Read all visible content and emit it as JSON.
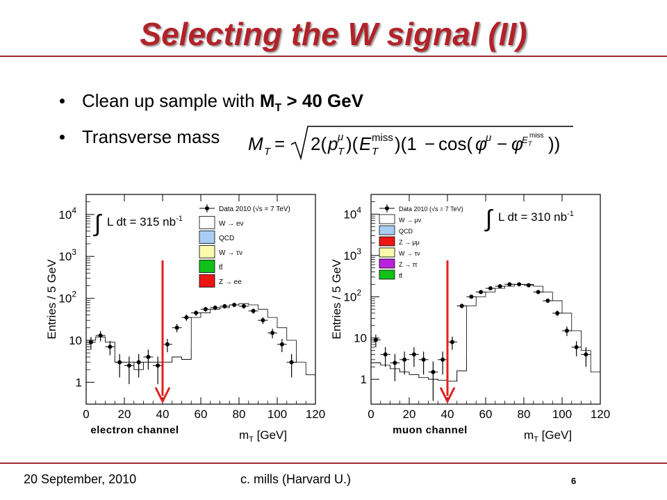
{
  "slide": {
    "title": "Selecting the W signal (II)",
    "bullets": [
      {
        "prefix": "Clean up sample with ",
        "bold": "M",
        "sub": "T",
        "suffix": " > 40 GeV"
      },
      {
        "text": "Transverse mass"
      }
    ],
    "footer_date": "20 September, 2010",
    "footer_author": "c. mills (Harvard U.)",
    "page_number": "6",
    "colors": {
      "title": "#b1232a",
      "rule": "#9b2a2f",
      "cut_arrow": "#e0201e"
    }
  },
  "chart_data": [
    {
      "type": "bar",
      "channel_label": "electron channel",
      "xlabel": "m_T [GeV]",
      "ylabel": "Entries / 5 GeV",
      "log_y": true,
      "xlim": [
        0,
        120
      ],
      "ylim": [
        0.3,
        30000
      ],
      "x_ticks": [
        "0",
        "20",
        "40",
        "60",
        "80",
        "100",
        "120"
      ],
      "y_ticks": [
        "1",
        "10",
        "10^2",
        "10^3",
        "10^4"
      ],
      "luminosity_label": "L dt = 315 nb^-1",
      "cut_value": 40,
      "bin_width": 5,
      "legend_position": "top-right",
      "legend": [
        {
          "label": "Data 2010 (√s = 7 TeV)",
          "kind": "marker",
          "color": "#000000"
        },
        {
          "label": "W → eν",
          "kind": "box",
          "color": "#ffffff"
        },
        {
          "label": "QCD",
          "kind": "box",
          "color": "#a9cdf2"
        },
        {
          "label": "W → τν",
          "kind": "box",
          "color": "#fafaac"
        },
        {
          "label": "tt̄",
          "kind": "box",
          "color": "#11c11a"
        },
        {
          "label": "Z → ee",
          "kind": "box",
          "color": "#ee1515"
        }
      ],
      "stacks": [
        {
          "name": "Z → ee",
          "color": "#ee1515",
          "values": [
            0,
            0,
            0,
            0,
            0,
            0,
            0,
            0,
            0,
            0,
            0,
            0,
            0.32,
            0.38,
            0.42,
            0.42,
            0.38,
            0.33,
            0,
            0,
            0,
            0,
            0,
            0
          ]
        },
        {
          "name": "tt̄",
          "color": "#11c11a",
          "values": [
            0,
            0,
            0,
            0,
            0,
            0,
            0,
            0,
            0,
            0.35,
            0.4,
            0.5,
            0.62,
            0.72,
            0.78,
            0.78,
            0.7,
            0.6,
            0.5,
            0.42,
            0.36,
            0.32,
            0,
            0
          ]
        },
        {
          "name": "W → τν",
          "color": "#fafaac",
          "values": [
            0.7,
            0.7,
            0.7,
            0.72,
            0.72,
            0.72,
            0.75,
            0.75,
            0.8,
            0.8,
            0.82,
            2.8,
            3.8,
            4.2,
            4.0,
            3.2,
            2.4,
            1.6,
            1.0,
            0.6,
            0.4,
            0.36,
            0.34,
            0.32
          ]
        },
        {
          "name": "QCD",
          "color": "#a9cdf2",
          "values": [
            10,
            12,
            9,
            3,
            3,
            2,
            3,
            3,
            3,
            4,
            3.5,
            6,
            6,
            6.5,
            6.5,
            4.5,
            3.5,
            2.5,
            1.5,
            1,
            4,
            4,
            0.55,
            1.5
          ]
        },
        {
          "name": "W → eν",
          "color": "#ffffff",
          "values": [
            10,
            12,
            9,
            3,
            3,
            2,
            3,
            3,
            3,
            4,
            3.5,
            35,
            45,
            55,
            60,
            70,
            75,
            70,
            55,
            35,
            20,
            10,
            3,
            1.5
          ]
        }
      ],
      "data_points": [
        {
          "x": 2.5,
          "y": 9,
          "err": 3
        },
        {
          "x": 7.5,
          "y": 13,
          "err": 3.6
        },
        {
          "x": 12.5,
          "y": 7,
          "err": 2.6
        },
        {
          "x": 17.5,
          "y": 3,
          "err": 1.7
        },
        {
          "x": 22.5,
          "y": 2.5,
          "err": 1.6
        },
        {
          "x": 27.5,
          "y": 3,
          "err": 1.7
        },
        {
          "x": 32.5,
          "y": 4,
          "err": 2
        },
        {
          "x": 37.5,
          "y": 2.5,
          "err": 1.6
        },
        {
          "x": 42.5,
          "y": 8,
          "err": 2.8
        },
        {
          "x": 47.5,
          "y": 20,
          "err": 4.5
        },
        {
          "x": 52.5,
          "y": 35,
          "err": 6
        },
        {
          "x": 57.5,
          "y": 45,
          "err": 6.7
        },
        {
          "x": 62.5,
          "y": 55,
          "err": 7.4
        },
        {
          "x": 67.5,
          "y": 60,
          "err": 7.7
        },
        {
          "x": 72.5,
          "y": 65,
          "err": 8
        },
        {
          "x": 77.5,
          "y": 70,
          "err": 8.4
        },
        {
          "x": 82.5,
          "y": 65,
          "err": 8
        },
        {
          "x": 87.5,
          "y": 50,
          "err": 7
        },
        {
          "x": 92.5,
          "y": 30,
          "err": 5.5
        },
        {
          "x": 97.5,
          "y": 15,
          "err": 3.9
        },
        {
          "x": 102.5,
          "y": 8,
          "err": 2.8
        },
        {
          "x": 107.5,
          "y": 3,
          "err": 1.7
        }
      ]
    },
    {
      "type": "bar",
      "channel_label": "muon channel",
      "xlabel": "m_T [GeV]",
      "ylabel": "Entries / 5 GeV",
      "log_y": true,
      "xlim": [
        0,
        120
      ],
      "ylim": [
        0.25,
        30000
      ],
      "x_ticks": [
        "0",
        "20",
        "40",
        "60",
        "80",
        "100",
        "120"
      ],
      "y_ticks": [
        "1",
        "10",
        "10^2",
        "10^3",
        "10^4"
      ],
      "luminosity_label": "L dt = 310 nb^-1",
      "cut_value": 40,
      "bin_width": 5,
      "legend_position": "top-left",
      "legend": [
        {
          "label": "Data 2010 (√s = 7 TeV)",
          "kind": "marker",
          "color": "#000000"
        },
        {
          "label": "W → μν",
          "kind": "box",
          "color": "#ffffff"
        },
        {
          "label": "QCD",
          "kind": "box",
          "color": "#a9cdf2"
        },
        {
          "label": "Z → μμ",
          "kind": "box",
          "color": "#ee1515"
        },
        {
          "label": "W → τν",
          "kind": "box",
          "color": "#fafaac"
        },
        {
          "label": "Z → ττ",
          "kind": "box",
          "color": "#bb22dd"
        },
        {
          "label": "tt̄",
          "kind": "box",
          "color": "#11c11a"
        }
      ],
      "stacks": [
        {
          "name": "tt̄",
          "color": "#11c11a",
          "values": [
            0,
            0,
            0,
            0,
            0,
            0,
            0,
            0,
            0,
            0.32,
            0.36,
            0.4,
            0.45,
            0.5,
            0.55,
            0.55,
            0.5,
            0.45,
            0.4,
            0.35,
            0.3,
            0,
            0,
            0
          ]
        },
        {
          "name": "Z → ττ",
          "color": "#bb22dd",
          "values": [
            0.45,
            0.4,
            0.38,
            0.36,
            0.35,
            0.35,
            0.34,
            0.33,
            0.33,
            0.45,
            0.55,
            0.65,
            0.7,
            0.7,
            0.65,
            0.6,
            0.55,
            0.5,
            0.45,
            0.4,
            0.36,
            0.32,
            0.3,
            0.28
          ]
        },
        {
          "name": "W → τν",
          "color": "#fafaac",
          "values": [
            0.6,
            0.55,
            0.5,
            0.48,
            0.46,
            0.45,
            0.44,
            0.43,
            0.43,
            1.2,
            2.0,
            2.8,
            3.4,
            3.6,
            3.5,
            3.0,
            2.4,
            1.8,
            1.2,
            0.8,
            0.55,
            0.45,
            0.4,
            0.35
          ]
        },
        {
          "name": "Z → μμ",
          "color": "#ee1515",
          "values": [
            0.65,
            0.6,
            0.55,
            0.52,
            0.5,
            0.5,
            0.5,
            0.48,
            0.48,
            1.5,
            3.0,
            4.5,
            6.0,
            7.0,
            7.0,
            6.0,
            5.0,
            4.0,
            3.0,
            2.0,
            1.2,
            0.8,
            0.55,
            0.45
          ]
        },
        {
          "name": "QCD",
          "color": "#a9cdf2",
          "values": [
            2.5,
            2.2,
            1.8,
            1.5,
            1.3,
            1.1,
            1.0,
            0.95,
            0.9,
            1.6,
            3.2,
            4.8,
            6.3,
            7.3,
            7.3,
            6.2,
            5.2,
            4.1,
            3.1,
            2.1,
            1.3,
            0.85,
            0.6,
            0.5
          ]
        },
        {
          "name": "W → μν",
          "color": "#ffffff",
          "values": [
            2.5,
            2.2,
            1.8,
            1.5,
            1.3,
            1.1,
            1.0,
            0.95,
            0.9,
            1.6,
            60,
            100,
            130,
            160,
            180,
            200,
            200,
            180,
            130,
            80,
            40,
            15,
            5,
            1.5
          ]
        }
      ],
      "data_points": [
        {
          "x": 2.5,
          "y": 9,
          "err": 3
        },
        {
          "x": 7.5,
          "y": 4,
          "err": 2
        },
        {
          "x": 12.5,
          "y": 2.5,
          "err": 1.6
        },
        {
          "x": 17.5,
          "y": 3,
          "err": 1.7
        },
        {
          "x": 22.5,
          "y": 4,
          "err": 2
        },
        {
          "x": 27.5,
          "y": 3,
          "err": 1.7
        },
        {
          "x": 32.5,
          "y": 1.5,
          "err": 1.2
        },
        {
          "x": 37.5,
          "y": 3,
          "err": 1.7
        },
        {
          "x": 42.5,
          "y": 8,
          "err": 2.8
        },
        {
          "x": 47.5,
          "y": 60,
          "err": 7.7
        },
        {
          "x": 52.5,
          "y": 100,
          "err": 10
        },
        {
          "x": 57.5,
          "y": 130,
          "err": 11.4
        },
        {
          "x": 62.5,
          "y": 160,
          "err": 12.6
        },
        {
          "x": 67.5,
          "y": 180,
          "err": 13.4
        },
        {
          "x": 72.5,
          "y": 200,
          "err": 14.1
        },
        {
          "x": 77.5,
          "y": 200,
          "err": 14.1
        },
        {
          "x": 82.5,
          "y": 190,
          "err": 13.8
        },
        {
          "x": 87.5,
          "y": 130,
          "err": 11.4
        },
        {
          "x": 92.5,
          "y": 80,
          "err": 8.9
        },
        {
          "x": 97.5,
          "y": 40,
          "err": 6.3
        },
        {
          "x": 102.5,
          "y": 15,
          "err": 3.9
        },
        {
          "x": 107.5,
          "y": 6,
          "err": 2.4
        },
        {
          "x": 112.5,
          "y": 4,
          "err": 2
        }
      ]
    }
  ]
}
